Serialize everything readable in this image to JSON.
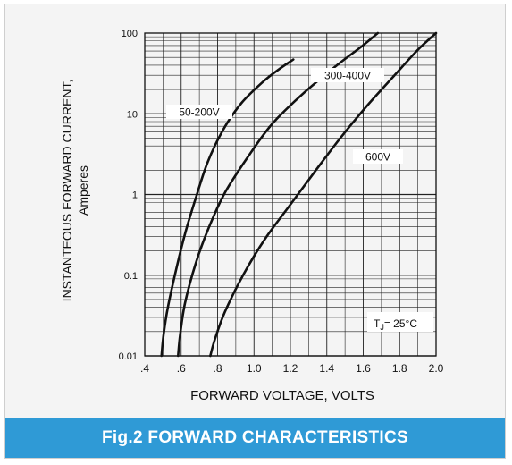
{
  "caption": "Fig.2 FORWARD CHARACTERISTICS",
  "chart_data": {
    "type": "line",
    "title": "",
    "xlabel": "FORWARD VOLTAGE, VOLTS",
    "ylabel": "INSTANTEOUS FORWARD CURRENT,",
    "ylabel_unit": "Amperes",
    "xlim": [
      0.4,
      2.0
    ],
    "ylim": [
      0.01,
      100
    ],
    "y_scale": "log",
    "grid": true,
    "x_ticks": [
      {
        "v": 0.4,
        "label": ".4"
      },
      {
        "v": 0.6,
        "label": ".6"
      },
      {
        "v": 0.8,
        "label": ".8"
      },
      {
        "v": 1.0,
        "label": "1.0"
      },
      {
        "v": 1.2,
        "label": "1.2"
      },
      {
        "v": 1.4,
        "label": "1.4"
      },
      {
        "v": 1.6,
        "label": "1.6"
      },
      {
        "v": 1.8,
        "label": "1.8"
      },
      {
        "v": 2.0,
        "label": "2.0"
      }
    ],
    "y_ticks": [
      {
        "v": 0.01,
        "label": "0.01"
      },
      {
        "v": 0.1,
        "label": "0.1"
      },
      {
        "v": 1,
        "label": "1"
      },
      {
        "v": 10,
        "label": "10"
      },
      {
        "v": 100,
        "label": "100"
      }
    ],
    "series": [
      {
        "name": "50-200V",
        "x": [
          0.492,
          0.503,
          0.527,
          0.577,
          0.625,
          0.68,
          0.745,
          0.83,
          0.93,
          1.05,
          1.14,
          1.216
        ],
        "y": [
          0.01,
          0.018,
          0.04,
          0.13,
          0.35,
          0.9,
          2.5,
          6.3,
          13.5,
          25,
          36,
          47
        ]
      },
      {
        "name": "300-400V",
        "x": [
          0.583,
          0.594,
          0.621,
          0.68,
          0.75,
          0.84,
          0.97,
          1.1,
          1.26,
          1.45,
          1.59,
          1.68
        ],
        "y": [
          0.01,
          0.018,
          0.045,
          0.14,
          0.38,
          1.05,
          3.0,
          7.5,
          17,
          39,
          68,
          100
        ]
      },
      {
        "name": "600V",
        "x": [
          0.76,
          0.785,
          0.84,
          0.94,
          1.06,
          1.2,
          1.34,
          1.48,
          1.62,
          1.76,
          1.9,
          2.0
        ],
        "y": [
          0.01,
          0.016,
          0.035,
          0.1,
          0.28,
          0.75,
          2.0,
          5.2,
          12.5,
          28,
          62,
          100
        ]
      }
    ],
    "annotation": {
      "t": "T",
      "sub": "J",
      "rest": "= 25°C"
    }
  }
}
